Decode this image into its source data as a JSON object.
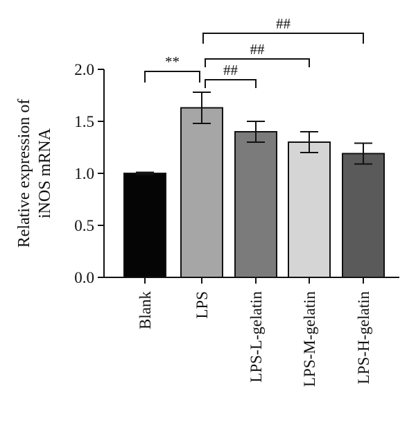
{
  "chart_data": {
    "type": "bar",
    "categories": [
      "Blank",
      "LPS",
      "LPS-L-gelatin",
      "LPS-M-gelatin",
      "LPS-H-gelatin"
    ],
    "values": [
      1.0,
      1.63,
      1.4,
      1.3,
      1.19
    ],
    "errors": [
      0.01,
      0.15,
      0.1,
      0.1,
      0.1
    ],
    "colors": [
      "#050505",
      "#a6a6a6",
      "#7b7b7b",
      "#d5d5d5",
      "#5a5a5a"
    ],
    "ylabel_lines": [
      "Relative expression of",
      "iNOS mRNA"
    ],
    "yticks": [
      0.0,
      0.5,
      1.0,
      1.5,
      2.0
    ],
    "ytick_labels": [
      "0.0",
      "0.5",
      "1.0",
      "1.5",
      "2.0"
    ],
    "ylim": [
      0,
      2.0
    ],
    "grid": false,
    "legend": "none",
    "significance": [
      {
        "from": 0,
        "to": 1,
        "label": "**"
      },
      {
        "from": 1,
        "to": 2,
        "label": "##"
      },
      {
        "from": 1,
        "to": 3,
        "label": "##"
      },
      {
        "from": 1,
        "to": 4,
        "label": "##"
      }
    ]
  }
}
